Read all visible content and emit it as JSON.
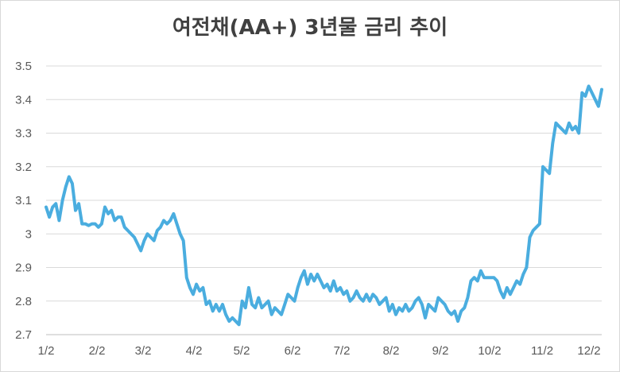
{
  "chart_data": {
    "type": "line",
    "title": "여전채(AA+) 3년물 금리 추이",
    "xlabel": "",
    "ylabel": "",
    "ylim": [
      2.7,
      3.5
    ],
    "yticks": [
      "2.7",
      "2.8",
      "2.9",
      "3",
      "3.1",
      "3.2",
      "3.3",
      "3.4",
      "3.5"
    ],
    "xticks": [
      "1/2",
      "2/2",
      "3/2",
      "4/2",
      "5/2",
      "6/2",
      "7/2",
      "8/2",
      "9/2",
      "10/2",
      "11/2",
      "12/2"
    ],
    "grid": true,
    "line_color": "#4aaddf",
    "series": [
      {
        "values": [
          3.08,
          3.05,
          3.08,
          3.09,
          3.04,
          3.1,
          3.14,
          3.17,
          3.15,
          3.07,
          3.09,
          3.03,
          3.03,
          3.025,
          3.03,
          3.03,
          3.02,
          3.03,
          3.08,
          3.06,
          3.07,
          3.04,
          3.05,
          3.05,
          3.02,
          3.01,
          3.0,
          2.99,
          2.97,
          2.95,
          2.98,
          3.0,
          2.99,
          2.98,
          3.01,
          3.02,
          3.04,
          3.03,
          3.04,
          3.06,
          3.03,
          3.0,
          2.98,
          2.87,
          2.84,
          2.82,
          2.85,
          2.83,
          2.84,
          2.79,
          2.8,
          2.77,
          2.79,
          2.77,
          2.79,
          2.76,
          2.74,
          2.75,
          2.74,
          2.73,
          2.8,
          2.78,
          2.84,
          2.79,
          2.78,
          2.81,
          2.78,
          2.79,
          2.8,
          2.76,
          2.78,
          2.77,
          2.76,
          2.79,
          2.82,
          2.81,
          2.8,
          2.84,
          2.87,
          2.89,
          2.85,
          2.88,
          2.86,
          2.88,
          2.86,
          2.84,
          2.85,
          2.83,
          2.86,
          2.83,
          2.84,
          2.82,
          2.83,
          2.8,
          2.81,
          2.83,
          2.81,
          2.8,
          2.82,
          2.8,
          2.82,
          2.81,
          2.79,
          2.8,
          2.81,
          2.77,
          2.79,
          2.76,
          2.78,
          2.77,
          2.79,
          2.77,
          2.78,
          2.8,
          2.81,
          2.79,
          2.75,
          2.79,
          2.78,
          2.77,
          2.81,
          2.8,
          2.79,
          2.77,
          2.76,
          2.77,
          2.74,
          2.77,
          2.78,
          2.81,
          2.86,
          2.87,
          2.86,
          2.89,
          2.87,
          2.87,
          2.87,
          2.87,
          2.86,
          2.83,
          2.81,
          2.84,
          2.82,
          2.84,
          2.86,
          2.85,
          2.88,
          2.9,
          2.99,
          3.01,
          3.02,
          3.03,
          3.2,
          3.19,
          3.18,
          3.27,
          3.33,
          3.32,
          3.31,
          3.3,
          3.33,
          3.31,
          3.32,
          3.3,
          3.42,
          3.41,
          3.44,
          3.42,
          3.4,
          3.38,
          3.43
        ]
      }
    ]
  }
}
